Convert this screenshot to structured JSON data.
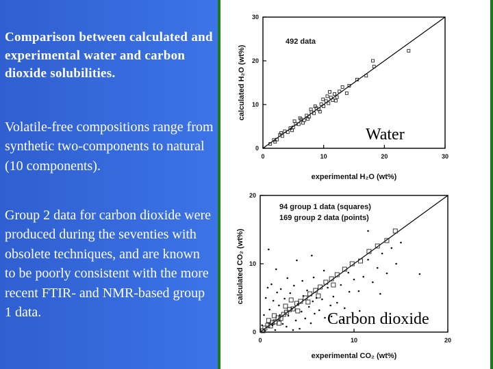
{
  "text": {
    "p1": "Comparison between calculated and experimental water and carbon dioxide solubilities.",
    "p2": "Volatile-free compositions range from synthetic two-components to natural (10 components).",
    "p3": "Group 2 data for carbon dioxide were produced during the seventies with obsolete techniques, and are known to be poorly consistent with the more recent FTIR- and NMR-based group 1 data."
  },
  "colors": {
    "background": "#3563d8",
    "frame": "#1b7a1b"
  },
  "chart_data": [
    {
      "type": "scatter",
      "title": "",
      "label": "Water",
      "annotation": "492 data",
      "xlabel": "experimental H₂O (wt%)",
      "ylabel": "calculated H₂O (wt%)",
      "xlim": [
        0,
        30
      ],
      "ylim": [
        0,
        30
      ],
      "xticks": [
        0,
        10,
        20,
        30
      ],
      "yticks": [
        0,
        10,
        20,
        30
      ],
      "reference_line": "1:1",
      "series": [
        {
          "marker": "square",
          "points": [
            [
              1.2,
              1.0
            ],
            [
              1.8,
              1.9
            ],
            [
              2.3,
              2.0
            ],
            [
              2.8,
              3.1
            ],
            [
              3.2,
              2.8
            ],
            [
              3.6,
              3.9
            ],
            [
              4.1,
              3.7
            ],
            [
              4.5,
              4.6
            ],
            [
              5.0,
              4.8
            ],
            [
              5.4,
              5.6
            ],
            [
              5.9,
              5.5
            ],
            [
              6.3,
              6.6
            ],
            [
              6.8,
              6.4
            ],
            [
              7.2,
              7.5
            ],
            [
              7.6,
              7.2
            ],
            [
              8.0,
              8.3
            ],
            [
              8.4,
              8.0
            ],
            [
              8.8,
              9.2
            ],
            [
              9.2,
              8.9
            ],
            [
              9.6,
              10.1
            ],
            [
              10.0,
              9.6
            ],
            [
              10.4,
              10.8
            ],
            [
              10.8,
              10.3
            ],
            [
              11.2,
              11.6
            ],
            [
              11.5,
              11.0
            ],
            [
              11.8,
              12.4
            ],
            [
              12.2,
              11.7
            ],
            [
              12.6,
              13.0
            ],
            [
              13.1,
              14.0
            ],
            [
              14.2,
              14.3
            ],
            [
              15.5,
              15.7
            ],
            [
              17.0,
              16.6
            ],
            [
              18.1,
              20.0
            ],
            [
              18.3,
              18.7
            ],
            [
              24.0,
              22.3
            ],
            [
              5.2,
              6.2
            ],
            [
              6.6,
              5.8
            ],
            [
              7.9,
              8.9
            ],
            [
              9.9,
              11.2
            ],
            [
              11.0,
              12.9
            ],
            [
              9.4,
              8.4
            ],
            [
              12.0,
              10.9
            ],
            [
              3.0,
              3.5
            ],
            [
              4.8,
              4.1
            ],
            [
              8.6,
              9.6
            ],
            [
              10.6,
              11.9
            ],
            [
              6.1,
              6.9
            ],
            [
              7.4,
              6.7
            ],
            [
              2.0,
              1.5
            ],
            [
              13.8,
              12.6
            ]
          ]
        }
      ]
    },
    {
      "type": "scatter",
      "title": "",
      "label": "Carbon dioxide",
      "xlabel": "experimental CO₂ (wt%)",
      "ylabel": "calculated CO₂ (wt%)",
      "xlim": [
        0,
        20
      ],
      "ylim": [
        0,
        20
      ],
      "xticks": [
        0,
        10,
        20
      ],
      "yticks": [
        0,
        10,
        20
      ],
      "reference_line": "1:1",
      "series": [
        {
          "name": "94 group 1 data (squares)",
          "marker": "square",
          "points": [
            [
              0.5,
              0.6
            ],
            [
              0.8,
              1.0
            ],
            [
              1.1,
              0.9
            ],
            [
              1.3,
              1.4
            ],
            [
              1.6,
              1.5
            ],
            [
              1.9,
              2.1
            ],
            [
              2.2,
              2.0
            ],
            [
              2.5,
              2.6
            ],
            [
              2.8,
              2.9
            ],
            [
              3.1,
              3.3
            ],
            [
              3.5,
              3.4
            ],
            [
              3.9,
              4.2
            ],
            [
              4.3,
              4.5
            ],
            [
              4.8,
              5.0
            ],
            [
              5.3,
              5.6
            ],
            [
              5.9,
              6.1
            ],
            [
              6.4,
              6.6
            ],
            [
              7.0,
              7.3
            ],
            [
              7.6,
              7.8
            ],
            [
              8.2,
              8.4
            ],
            [
              9.0,
              9.2
            ],
            [
              9.8,
              10.0
            ],
            [
              10.7,
              10.4
            ],
            [
              11.6,
              11.8
            ],
            [
              12.5,
              12.6
            ],
            [
              13.5,
              13.4
            ],
            [
              14.4,
              14.8
            ],
            [
              0.9,
              1.7
            ],
            [
              1.5,
              2.4
            ],
            [
              2.7,
              3.8
            ],
            [
              4.0,
              3.1
            ],
            [
              5.1,
              4.4
            ],
            [
              6.2,
              5.3
            ],
            [
              0.3,
              0.2
            ],
            [
              2.0,
              1.3
            ],
            [
              3.3,
              4.7
            ],
            [
              7.8,
              6.9
            ]
          ]
        },
        {
          "name": "169 group 2 data (points)",
          "marker": "point",
          "points": [
            [
              0.4,
              2.5
            ],
            [
              0.6,
              5.0
            ],
            [
              0.8,
              6.5
            ],
            [
              1.0,
              3.3
            ],
            [
              1.2,
              7.0
            ],
            [
              1.4,
              4.6
            ],
            [
              1.6,
              0.3
            ],
            [
              1.8,
              5.8
            ],
            [
              2.0,
              3.9
            ],
            [
              2.2,
              6.3
            ],
            [
              2.4,
              1.2
            ],
            [
              2.6,
              4.9
            ],
            [
              2.8,
              0.8
            ],
            [
              3.0,
              2.4
            ],
            [
              3.2,
              5.7
            ],
            [
              3.4,
              3.4
            ],
            [
              3.6,
              6.8
            ],
            [
              3.8,
              1.7
            ],
            [
              4.0,
              4.1
            ],
            [
              4.2,
              0.5
            ],
            [
              4.4,
              3.0
            ],
            [
              4.6,
              5.3
            ],
            [
              4.8,
              2.0
            ],
            [
              5.0,
              6.1
            ],
            [
              5.2,
              3.7
            ],
            [
              5.4,
              1.3
            ],
            [
              5.6,
              4.5
            ],
            [
              5.8,
              2.7
            ],
            [
              6.0,
              5.0
            ],
            [
              6.3,
              3.2
            ],
            [
              6.6,
              4.8
            ],
            [
              6.9,
              2.1
            ],
            [
              7.2,
              6.5
            ],
            [
              7.5,
              3.9
            ],
            [
              7.8,
              5.2
            ],
            [
              8.2,
              4.3
            ],
            [
              8.6,
              6.9
            ],
            [
              9.0,
              3.5
            ],
            [
              9.5,
              5.9
            ],
            [
              10.0,
              7.7
            ],
            [
              10.5,
              6.0
            ],
            [
              11.0,
              8.1
            ],
            [
              11.5,
              10.6
            ],
            [
              12.0,
              7.3
            ],
            [
              12.5,
              9.4
            ],
            [
              13.0,
              11.5
            ],
            [
              13.5,
              8.6
            ],
            [
              14.0,
              12.3
            ],
            [
              14.5,
              10.0
            ],
            [
              15.0,
              13.1
            ],
            [
              11.5,
              14.8
            ],
            [
              17.0,
              8.5
            ],
            [
              0.2,
              1.0
            ],
            [
              0.5,
              0.2
            ],
            [
              1.3,
              1.0
            ],
            [
              2.1,
              2.5
            ],
            [
              3.5,
              0.3
            ],
            [
              4.5,
              7.5
            ],
            [
              5.7,
              8.0
            ],
            [
              6.8,
              9.0
            ],
            [
              7.6,
              2.3
            ],
            [
              8.8,
              1.8
            ],
            [
              9.4,
              8.7
            ],
            [
              2.9,
              7.9
            ],
            [
              1.7,
              9.2
            ],
            [
              0.9,
              12.1
            ],
            [
              3.9,
              10.5
            ],
            [
              5.5,
              11.2
            ],
            [
              10.6,
              3.1
            ],
            [
              12.8,
              5.6
            ]
          ]
        }
      ]
    }
  ]
}
